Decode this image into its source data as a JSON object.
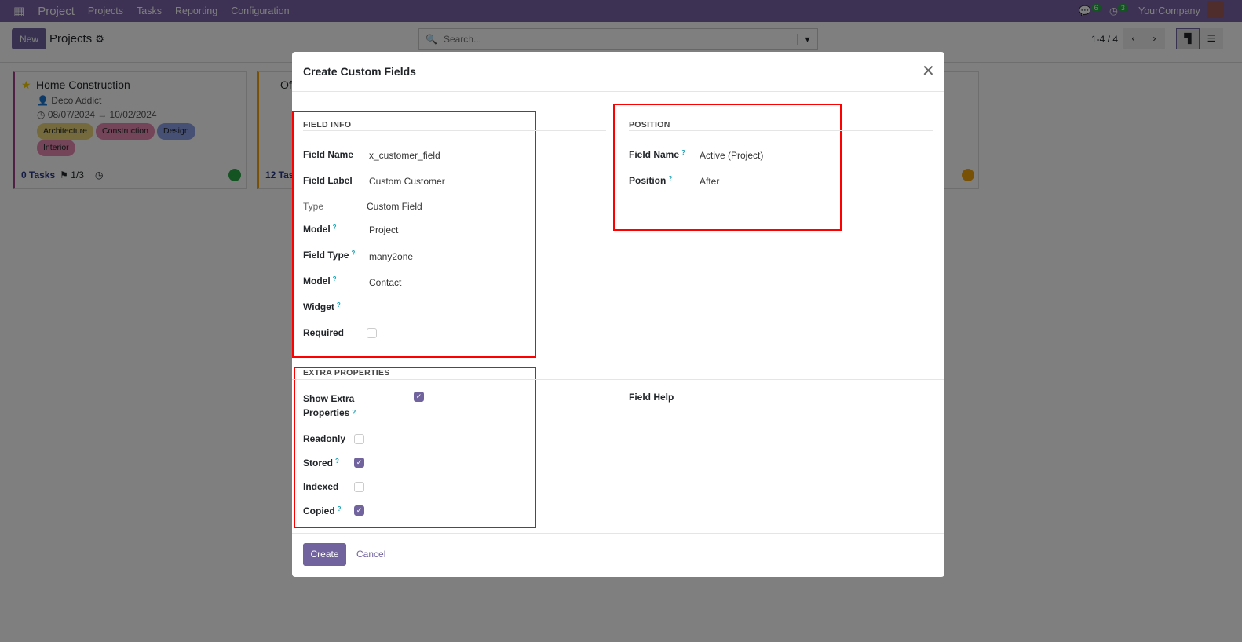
{
  "nav": {
    "app": "Project",
    "menus": [
      "Projects",
      "Tasks",
      "Reporting",
      "Configuration"
    ],
    "messages_count": "6",
    "activities_count": "3",
    "company": "YourCompany"
  },
  "control": {
    "new_label": "New",
    "breadcrumb": "Projects",
    "search_placeholder": "Search...",
    "pager": "1-4 / 4"
  },
  "cards": [
    {
      "title": "Home Construction",
      "customer": "Deco Addict",
      "start": "08/07/2024",
      "end": "10/02/2024",
      "tags": [
        "Architecture",
        "Construction",
        "Design",
        "Interior"
      ],
      "tasks": "0 Tasks",
      "milestones": "1/3",
      "status_color": "#28a745"
    },
    {
      "title": "Of",
      "tasks": "12 Tas",
      "status_color": "#f0a30a"
    }
  ],
  "modal": {
    "title": "Create Custom Fields",
    "field_info": {
      "heading": "FIELD INFO",
      "rows": [
        {
          "label": "Field Name",
          "value": "x_customer_field"
        },
        {
          "label": "Field Label",
          "value": "Custom Customer"
        },
        {
          "label": "Type",
          "value": "Custom Field"
        },
        {
          "label": "Model",
          "value": "Project"
        },
        {
          "label": "Field Type",
          "value": "many2one"
        },
        {
          "label": "Model",
          "value": "Contact"
        },
        {
          "label": "Widget",
          "value": ""
        },
        {
          "label": "Required",
          "checked": false
        }
      ]
    },
    "position": {
      "heading": "POSITION",
      "rows": [
        {
          "label": "Field Name",
          "value": "Active (Project)"
        },
        {
          "label": "Position",
          "value": "After"
        }
      ]
    },
    "extra": {
      "heading": "EXTRA PROPERTIES",
      "show_extra_label": "Show Extra Properties",
      "show_extra": true,
      "rows": [
        {
          "label": "Readonly",
          "checked": false
        },
        {
          "label": "Stored",
          "checked": true
        },
        {
          "label": "Indexed",
          "checked": false
        },
        {
          "label": "Copied",
          "checked": true
        }
      ],
      "field_help_label": "Field Help"
    },
    "create_label": "Create",
    "cancel_label": "Cancel"
  }
}
